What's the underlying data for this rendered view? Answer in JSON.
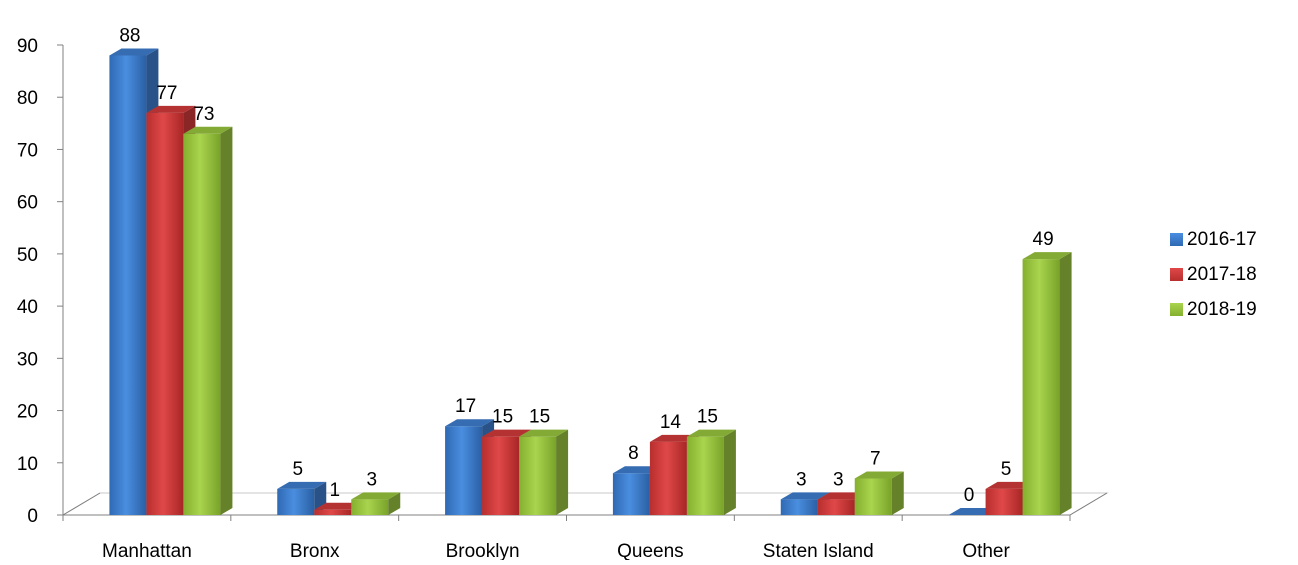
{
  "chart_data": {
    "type": "bar",
    "style": "3d-clustered-column",
    "categories": [
      "Manhattan",
      "Bronx",
      "Brooklyn",
      "Queens",
      "Staten Island",
      "Other"
    ],
    "series": [
      {
        "name": "2016-17",
        "values": [
          88,
          5,
          17,
          8,
          3,
          0
        ],
        "color": "#3f7fd1"
      },
      {
        "name": "2017-18",
        "values": [
          77,
          1,
          15,
          14,
          3,
          5
        ],
        "color": "#d43b3b"
      },
      {
        "name": "2018-19",
        "values": [
          73,
          3,
          15,
          15,
          7,
          49
        ],
        "color": "#9bc840"
      }
    ],
    "ylim": [
      0,
      90
    ],
    "yticks": [
      0,
      10,
      20,
      30,
      40,
      50,
      60,
      70,
      80,
      90
    ],
    "title": "",
    "xlabel": "",
    "ylabel": "",
    "legend_position": "right",
    "grid": false,
    "data_labels": true
  }
}
